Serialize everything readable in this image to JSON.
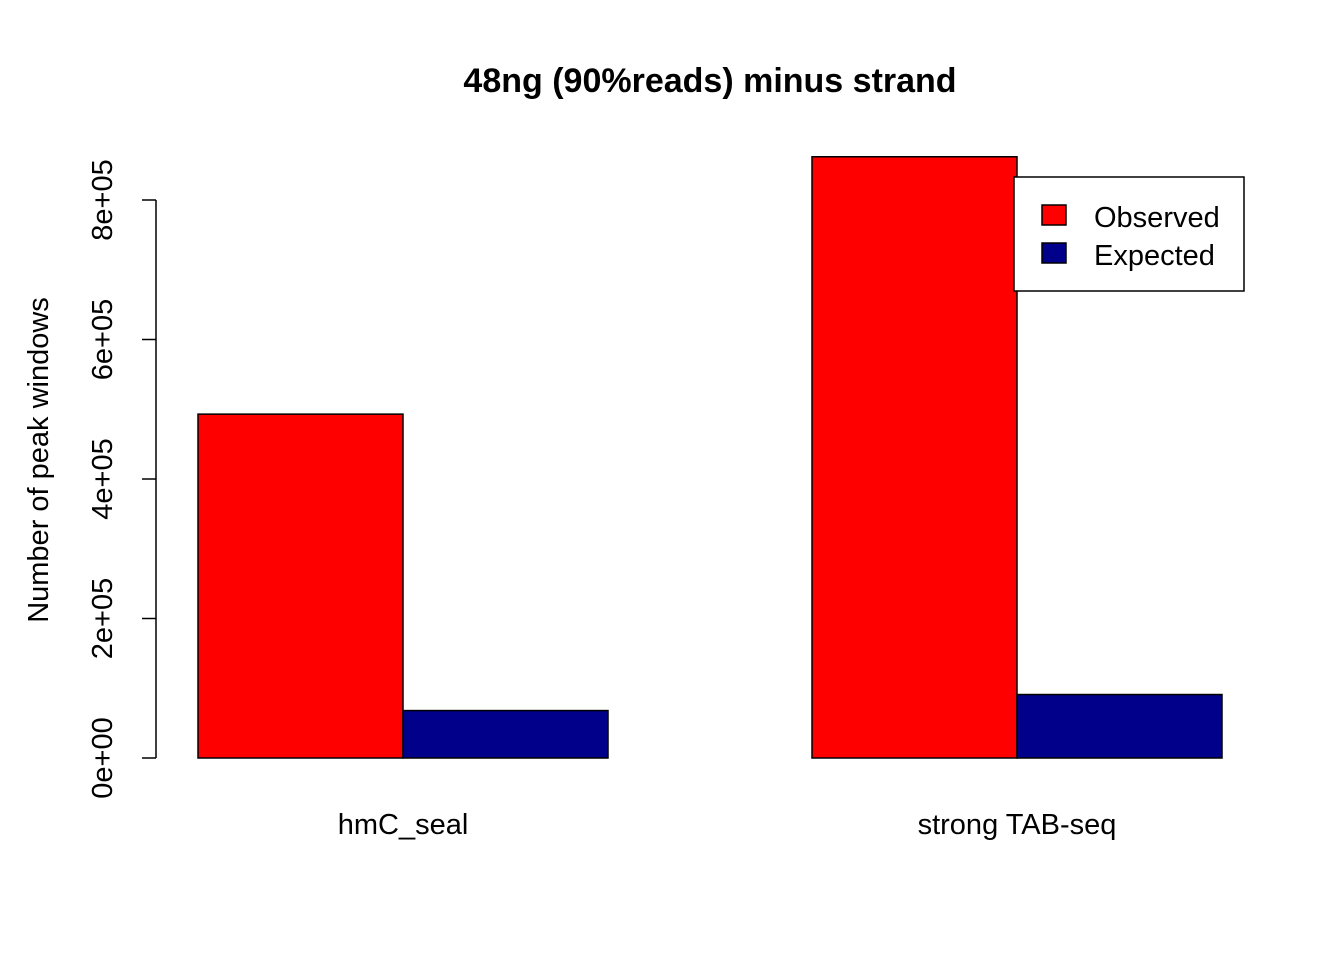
{
  "chart_data": {
    "type": "bar",
    "title": "48ng (90%reads) minus strand",
    "xlabel": "",
    "ylabel": "Number of peak windows",
    "categories": [
      "hmC_seal",
      "strong TAB-seq"
    ],
    "series": [
      {
        "name": "Observed",
        "color": "#ff0000",
        "values": [
          493000,
          862000
        ]
      },
      {
        "name": "Expected",
        "color": "#00008b",
        "values": [
          68000,
          91000
        ]
      }
    ],
    "ylim": [
      0,
      800000
    ],
    "yticks": [
      {
        "value": 0,
        "label": "0e+00"
      },
      {
        "value": 200000,
        "label": "2e+05"
      },
      {
        "value": 400000,
        "label": "4e+05"
      },
      {
        "value": 600000,
        "label": "6e+05"
      },
      {
        "value": 800000,
        "label": "8e+05"
      }
    ],
    "legend": {
      "position": "top-right"
    },
    "grid": false
  }
}
